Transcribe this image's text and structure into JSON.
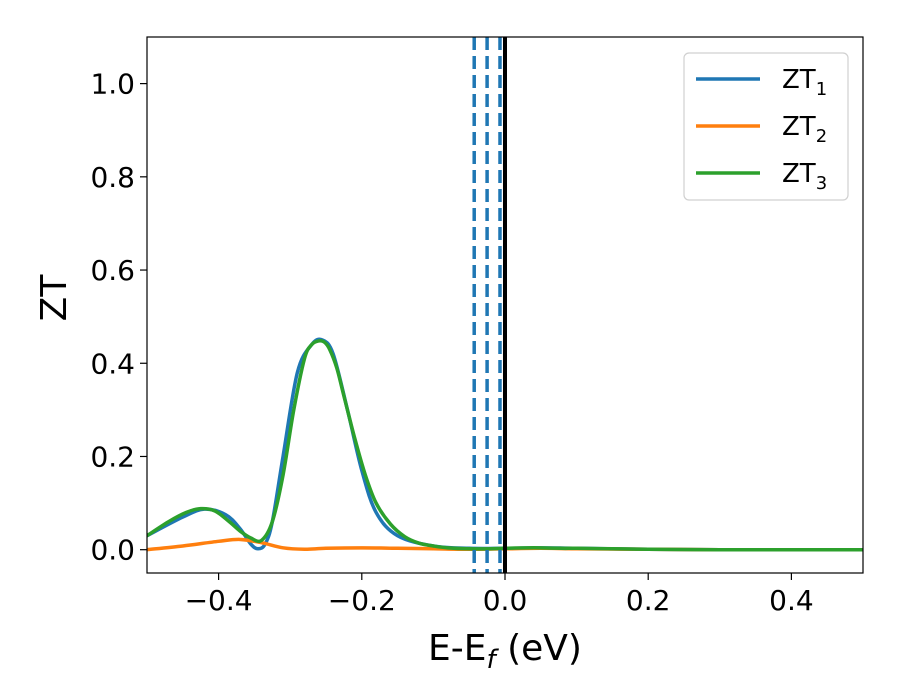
{
  "chart_data": {
    "type": "line",
    "xlabel": "E-E",
    "xlabel_sub": "f",
    "xlabel_unit": " (eV)",
    "ylabel": "ZT",
    "xlim": [
      -0.5,
      0.5
    ],
    "ylim": [
      -0.05,
      1.1
    ],
    "x_ticks": [
      -0.4,
      -0.2,
      0.0,
      0.2,
      0.4
    ],
    "x_tick_labels": [
      "−0.4",
      "−0.2",
      "0.0",
      "0.2",
      "0.4"
    ],
    "y_ticks": [
      0.0,
      0.2,
      0.4,
      0.6,
      0.8,
      1.0
    ],
    "y_tick_labels": [
      "0.0",
      "0.2",
      "0.4",
      "0.6",
      "0.8",
      "1.0"
    ],
    "grid": false,
    "legend_position": "top-right",
    "series": [
      {
        "name": "ZT",
        "subscript": "1",
        "color": "#1f77b4",
        "x": [
          -0.5,
          -0.45,
          -0.42,
          -0.39,
          -0.37,
          -0.355,
          -0.345,
          -0.335,
          -0.325,
          -0.31,
          -0.29,
          -0.27,
          -0.255,
          -0.24,
          -0.22,
          -0.2,
          -0.18,
          -0.15,
          -0.1,
          -0.05,
          0.0,
          0.05,
          0.1,
          0.2,
          0.3,
          0.4,
          0.5
        ],
        "values": [
          0.03,
          0.07,
          0.087,
          0.075,
          0.045,
          0.012,
          0.002,
          0.012,
          0.06,
          0.2,
          0.38,
          0.44,
          0.45,
          0.42,
          0.3,
          0.17,
          0.08,
          0.03,
          0.008,
          0.003,
          0.003,
          0.004,
          0.003,
          0.001,
          0.0,
          0.0,
          0.0
        ]
      },
      {
        "name": "ZT",
        "subscript": "2",
        "color": "#ff7f0e",
        "x": [
          -0.5,
          -0.45,
          -0.4,
          -0.37,
          -0.34,
          -0.31,
          -0.28,
          -0.25,
          -0.2,
          -0.15,
          -0.1,
          -0.05,
          0.0,
          0.05,
          0.1,
          0.2,
          0.3,
          0.4,
          0.5
        ],
        "values": [
          0.0,
          0.008,
          0.018,
          0.022,
          0.015,
          0.004,
          0.001,
          0.003,
          0.004,
          0.003,
          0.002,
          0.001,
          0.002,
          0.003,
          0.002,
          0.001,
          0.0,
          0.0,
          0.0
        ]
      },
      {
        "name": "ZT",
        "subscript": "3",
        "color": "#2ca02c",
        "x": [
          -0.5,
          -0.47,
          -0.445,
          -0.425,
          -0.405,
          -0.385,
          -0.37,
          -0.355,
          -0.34,
          -0.325,
          -0.31,
          -0.295,
          -0.28,
          -0.27,
          -0.26,
          -0.252,
          -0.245,
          -0.235,
          -0.225,
          -0.21,
          -0.195,
          -0.18,
          -0.16,
          -0.14,
          -0.12,
          -0.1,
          -0.08,
          -0.05,
          -0.02,
          0.0,
          0.03,
          0.05,
          0.08,
          0.1,
          0.15,
          0.2,
          0.3,
          0.4,
          0.5
        ],
        "values": [
          0.03,
          0.06,
          0.08,
          0.088,
          0.083,
          0.06,
          0.04,
          0.025,
          0.02,
          0.06,
          0.16,
          0.3,
          0.41,
          0.44,
          0.448,
          0.445,
          0.43,
          0.39,
          0.33,
          0.24,
          0.16,
          0.1,
          0.055,
          0.028,
          0.014,
          0.008,
          0.004,
          0.002,
          0.002,
          0.003,
          0.004,
          0.004,
          0.003,
          0.003,
          0.002,
          0.001,
          0.0,
          0.0,
          0.0
        ]
      }
    ],
    "vertical_lines": [
      {
        "x": -0.043,
        "color": "#1f77b4",
        "style": "dashed"
      },
      {
        "x": -0.025,
        "color": "#1f77b4",
        "style": "dashed"
      },
      {
        "x": -0.007,
        "color": "#1f77b4",
        "style": "dashed"
      },
      {
        "x": 0.0,
        "color": "#000000",
        "style": "solid"
      }
    ]
  }
}
